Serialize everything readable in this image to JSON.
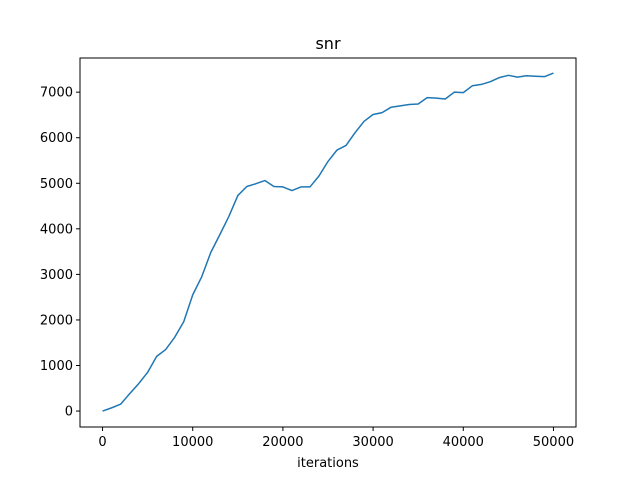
{
  "chart_data": {
    "type": "line",
    "title": "snr",
    "xlabel": "iterations",
    "ylabel": "",
    "xlim": [
      -2500,
      52500
    ],
    "ylim": [
      -350,
      7750
    ],
    "xticks": [
      0,
      10000,
      20000,
      30000,
      40000,
      50000
    ],
    "yticks": [
      0,
      1000,
      2000,
      3000,
      4000,
      5000,
      6000,
      7000
    ],
    "grid": false,
    "series_color": "#1f77b4",
    "series": [
      {
        "x": [
          0,
          1000,
          2000,
          3000,
          4000,
          5000,
          6000,
          7000,
          8000,
          9000,
          10000,
          11000,
          12000,
          13000,
          14000,
          15000,
          16000,
          17000,
          18000,
          19000,
          20000,
          21000,
          22000,
          23000,
          24000,
          25000,
          26000,
          27000,
          28000,
          29000,
          30000,
          31000,
          32000,
          33000,
          34000,
          35000,
          36000,
          37000,
          38000,
          39000,
          40000,
          41000,
          42000,
          43000,
          44000,
          45000,
          46000,
          47000,
          48000,
          49000,
          50000
        ],
        "values": [
          0,
          70,
          150,
          380,
          600,
          850,
          1200,
          1350,
          1620,
          1960,
          2550,
          2950,
          3480,
          3870,
          4270,
          4730,
          4930,
          4990,
          5060,
          4930,
          4920,
          4840,
          4920,
          4920,
          5160,
          5480,
          5730,
          5830,
          6110,
          6360,
          6510,
          6550,
          6670,
          6700,
          6730,
          6740,
          6880,
          6870,
          6850,
          7000,
          6990,
          7140,
          7170,
          7230,
          7320,
          7370,
          7330,
          7360,
          7350,
          7340,
          7420
        ]
      }
    ]
  }
}
